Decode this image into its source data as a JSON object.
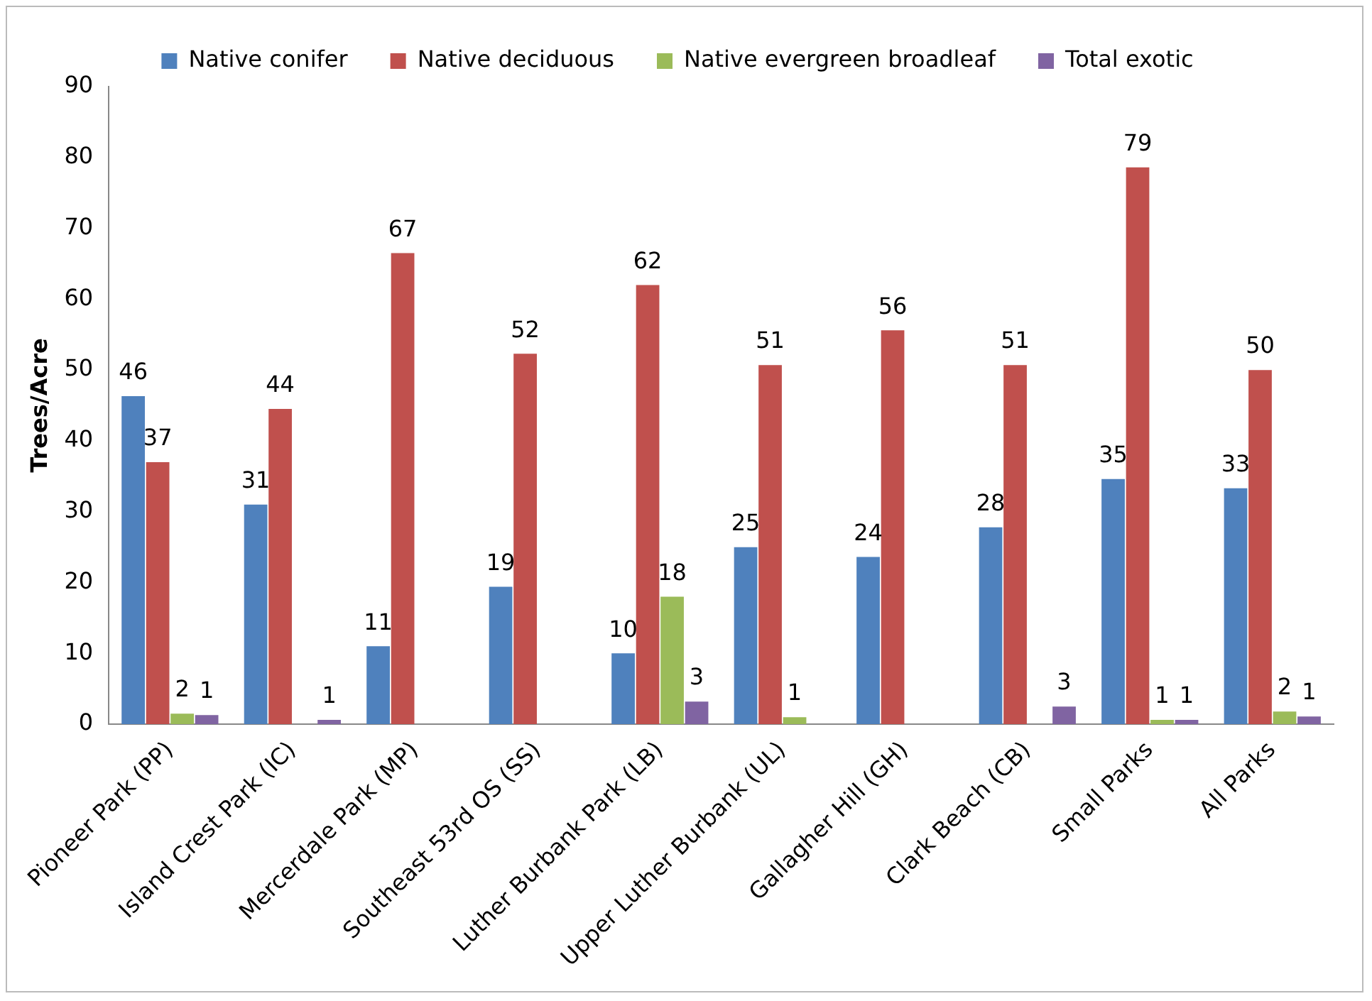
{
  "chart_data": {
    "type": "bar",
    "ylabel": "Trees/Acre",
    "categories": [
      "Pioneer Park (PP)",
      "Island Crest Park (IC)",
      "Mercerdale Park (MP)",
      "Southeast 53rd OS (SS)",
      "Luther Burbank Park (LB)",
      "Upper Luther Burbank (UL)",
      "Gallagher Hill (GH)",
      "Clark Beach (CB)",
      "Small Parks",
      "All Parks"
    ],
    "series": [
      {
        "name": "Native conifer",
        "color": "#4f81bd",
        "values": [
          46.3,
          31,
          11,
          19.4,
          10,
          25,
          23.6,
          27.8,
          34.6,
          33.3
        ],
        "value_labels": [
          "46",
          "31",
          "11",
          "19",
          "10",
          "25",
          "24",
          "28",
          "35",
          "33"
        ]
      },
      {
        "name": "Native deciduous",
        "color": "#c0504d",
        "values": [
          37,
          44.5,
          66.5,
          52.3,
          62,
          50.7,
          55.6,
          50.7,
          78.6,
          50
        ],
        "value_labels": [
          "37",
          "44",
          "67",
          "52",
          "62",
          "51",
          "56",
          "51",
          "79",
          "50"
        ]
      },
      {
        "name": "Native evergreen broadleaf",
        "color": "#9bbb59",
        "values": [
          1.5,
          null,
          null,
          null,
          18,
          1,
          null,
          null,
          0.6,
          1.8
        ],
        "value_labels": [
          "2",
          null,
          null,
          null,
          "18",
          "1",
          null,
          null,
          "1",
          "2"
        ]
      },
      {
        "name": "Total exotic",
        "color": "#8064a2",
        "values": [
          1.3,
          0.6,
          null,
          null,
          3.2,
          null,
          null,
          2.5,
          0.6,
          1.1
        ],
        "value_labels": [
          "1",
          "1",
          null,
          null,
          "3",
          null,
          null,
          "3",
          "1",
          "1"
        ]
      }
    ],
    "ylim": [
      0,
      90
    ],
    "yticks": [
      0,
      10,
      20,
      30,
      40,
      50,
      60,
      70,
      80,
      90
    ],
    "grid": false,
    "legend": "top"
  }
}
